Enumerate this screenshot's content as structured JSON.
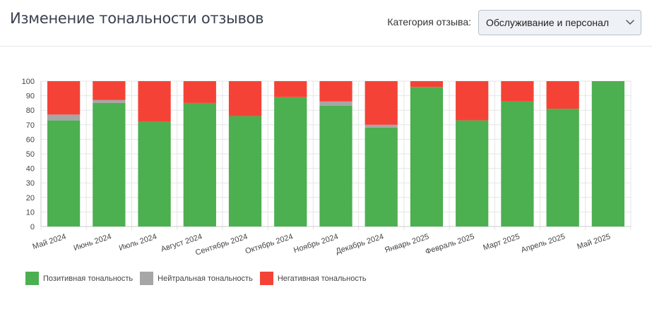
{
  "header": {
    "title": "Изменение тональности отзывов",
    "filter_label": "Категория отзыва:",
    "selected_category": "Обслуживание и персонал",
    "dropdown_icon": "chevron-down-icon"
  },
  "colors": {
    "positive": "#4caf50",
    "neutral": "#a6a6a6",
    "negative": "#f44336",
    "grid": "#e5e5e5"
  },
  "chart_data": {
    "type": "bar",
    "stacked": true,
    "categories": [
      "Май 2024",
      "Июнь 2024",
      "Июль 2024",
      "Август 2024",
      "Сентябрь 2024",
      "Октябрь 2024",
      "Ноябрь 2024",
      "Декабрь 2024",
      "Январь 2025",
      "Февраль 2025",
      "Март 2025",
      "Апрель 2025",
      "Май 2025"
    ],
    "series": [
      {
        "name": "Позитивная тональность",
        "color": "#4caf50",
        "values": [
          73,
          85,
          72,
          85,
          76,
          89,
          83,
          68,
          96,
          73,
          86,
          81,
          100
        ]
      },
      {
        "name": "Нейтральная тональность",
        "color": "#a6a6a6",
        "values": [
          4,
          2,
          0,
          0,
          0,
          0,
          3,
          2,
          0,
          0,
          0,
          0,
          0
        ]
      },
      {
        "name": "Негативная тональность",
        "color": "#f44336",
        "values": [
          23,
          13,
          28,
          15,
          24,
          11,
          14,
          30,
          4,
          27,
          14,
          19,
          0
        ]
      }
    ],
    "ylim": [
      0,
      100
    ],
    "yticks": [
      0,
      10,
      20,
      30,
      40,
      50,
      60,
      70,
      80,
      90,
      100
    ],
    "grid": true,
    "legend_position": "bottom-left"
  }
}
